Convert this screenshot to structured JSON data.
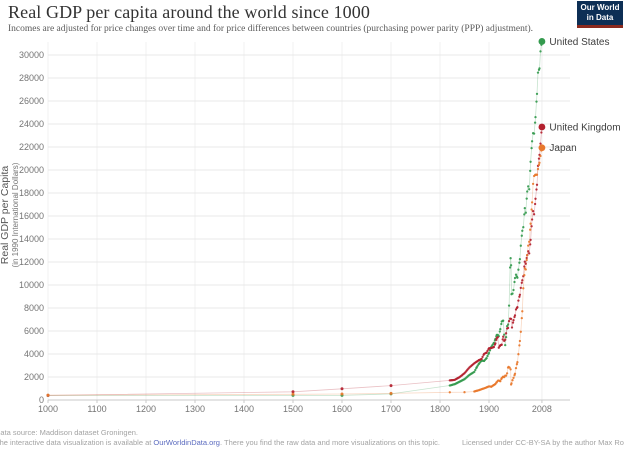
{
  "header": {
    "title": "Real GDP per capita around the world since 1000",
    "subtitle": "Incomes are adjusted for price changes over time and for price differences between countries (purchasing power parity (PPP) adjustment).",
    "logo": {
      "line1": "Our World",
      "line2": "in Data",
      "bg_color": "#0d2f55",
      "accent_color": "#8b2a1e"
    }
  },
  "chart_data": {
    "type": "scatter",
    "title": "Real GDP per capita around the world since 1000",
    "xlabel": "",
    "ylabel": "Real GDP per Capita",
    "ylabel2": "(in 1990 International Dollars)",
    "xlim": [
      1000,
      2008
    ],
    "ylim": [
      0,
      31400
    ],
    "grid": true,
    "legend_position": "right-of-last-point",
    "x_ticks": [
      1000,
      1100,
      1200,
      1300,
      1400,
      1500,
      1600,
      1700,
      1800,
      1900,
      2008
    ],
    "y_ticks": [
      0,
      2000,
      4000,
      6000,
      8000,
      10000,
      12000,
      14000,
      16000,
      18000,
      20000,
      22000,
      24000,
      26000,
      28000,
      30000
    ],
    "series": [
      {
        "name": "United States",
        "color": "#349a4e",
        "points": [
          [
            1000,
            400
          ],
          [
            1500,
            400
          ],
          [
            1600,
            400
          ],
          [
            1700,
            527
          ],
          [
            1820,
            1257
          ],
          [
            1830,
            1376
          ],
          [
            1840,
            1588
          ],
          [
            1850,
            1806
          ],
          [
            1860,
            2178
          ],
          [
            1870,
            2445
          ],
          [
            1875,
            2860
          ],
          [
            1880,
            3184
          ],
          [
            1885,
            3430
          ],
          [
            1890,
            3392
          ],
          [
            1895,
            3644
          ],
          [
            1900,
            4091
          ],
          [
            1905,
            4642
          ],
          [
            1910,
            4964
          ],
          [
            1913,
            5301
          ],
          [
            1916,
            5659
          ],
          [
            1918,
            5659
          ],
          [
            1920,
            5552
          ],
          [
            1923,
            6164
          ],
          [
            1926,
            6826
          ],
          [
            1929,
            6899
          ],
          [
            1931,
            5691
          ],
          [
            1933,
            4777
          ],
          [
            1935,
            5467
          ],
          [
            1937,
            6430
          ],
          [
            1939,
            6561
          ],
          [
            1941,
            8206
          ],
          [
            1943,
            11518
          ],
          [
            1944,
            12333
          ],
          [
            1945,
            11709
          ],
          [
            1946,
            9197
          ],
          [
            1948,
            9255
          ],
          [
            1950,
            9561
          ],
          [
            1953,
            10613
          ],
          [
            1955,
            10897
          ],
          [
            1958,
            10631
          ],
          [
            1960,
            11328
          ],
          [
            1963,
            12242
          ],
          [
            1965,
            13419
          ],
          [
            1968,
            14715
          ],
          [
            1970,
            15030
          ],
          [
            1973,
            16689
          ],
          [
            1975,
            16284
          ],
          [
            1978,
            18134
          ],
          [
            1980,
            18577
          ],
          [
            1982,
            18325
          ],
          [
            1985,
            20717
          ],
          [
            1988,
            22499
          ],
          [
            1990,
            23201
          ],
          [
            1992,
            23169
          ],
          [
            1995,
            24603
          ],
          [
            1998,
            26619
          ],
          [
            2000,
            28467
          ],
          [
            2003,
            28836
          ],
          [
            2005,
            30309
          ],
          [
            2008,
            31178
          ]
        ]
      },
      {
        "name": "United Kingdom",
        "color": "#b3202e",
        "points": [
          [
            1000,
            400
          ],
          [
            1500,
            714
          ],
          [
            1600,
            974
          ],
          [
            1700,
            1250
          ],
          [
            1820,
            1706
          ],
          [
            1830,
            1749
          ],
          [
            1840,
            1990
          ],
          [
            1850,
            2330
          ],
          [
            1860,
            2830
          ],
          [
            1870,
            3190
          ],
          [
            1875,
            3341
          ],
          [
            1880,
            3477
          ],
          [
            1885,
            3574
          ],
          [
            1890,
            4009
          ],
          [
            1895,
            4118
          ],
          [
            1900,
            4492
          ],
          [
            1905,
            4520
          ],
          [
            1910,
            4611
          ],
          [
            1913,
            4921
          ],
          [
            1916,
            5381
          ],
          [
            1918,
            5459
          ],
          [
            1920,
            4548
          ],
          [
            1923,
            4760
          ],
          [
            1926,
            4813
          ],
          [
            1929,
            5503
          ],
          [
            1931,
            5138
          ],
          [
            1933,
            5245
          ],
          [
            1935,
            5799
          ],
          [
            1937,
            6218
          ],
          [
            1939,
            6262
          ],
          [
            1941,
            6861
          ],
          [
            1943,
            7069
          ],
          [
            1945,
            7056
          ],
          [
            1947,
            6308
          ],
          [
            1950,
            6939
          ],
          [
            1953,
            7358
          ],
          [
            1955,
            7868
          ],
          [
            1958,
            8066
          ],
          [
            1960,
            8645
          ],
          [
            1963,
            9149
          ],
          [
            1965,
            9752
          ],
          [
            1968,
            10410
          ],
          [
            1970,
            10767
          ],
          [
            1973,
            12025
          ],
          [
            1975,
            11847
          ],
          [
            1978,
            12600
          ],
          [
            1980,
            12931
          ],
          [
            1982,
            12747
          ],
          [
            1985,
            13926
          ],
          [
            1988,
            15700
          ],
          [
            1990,
            16430
          ],
          [
            1992,
            16152
          ],
          [
            1995,
            17495
          ],
          [
            1998,
            18714
          ],
          [
            2000,
            20353
          ],
          [
            2003,
            21310
          ],
          [
            2005,
            22296
          ],
          [
            2008,
            23742
          ]
        ]
      },
      {
        "name": "Japan",
        "color": "#e8782d",
        "points": [
          [
            1000,
            425
          ],
          [
            1500,
            500
          ],
          [
            1600,
            520
          ],
          [
            1700,
            570
          ],
          [
            1820,
            669
          ],
          [
            1850,
            679
          ],
          [
            1870,
            737
          ],
          [
            1880,
            863
          ],
          [
            1890,
            1012
          ],
          [
            1900,
            1180
          ],
          [
            1905,
            1157
          ],
          [
            1910,
            1304
          ],
          [
            1913,
            1387
          ],
          [
            1916,
            1558
          ],
          [
            1918,
            1668
          ],
          [
            1920,
            1696
          ],
          [
            1923,
            1632
          ],
          [
            1926,
            1908
          ],
          [
            1929,
            2026
          ],
          [
            1931,
            1987
          ],
          [
            1933,
            2122
          ],
          [
            1935,
            2120
          ],
          [
            1937,
            2315
          ],
          [
            1939,
            2816
          ],
          [
            1940,
            2874
          ],
          [
            1942,
            2818
          ],
          [
            1944,
            2659
          ],
          [
            1945,
            1346
          ],
          [
            1946,
            1444
          ],
          [
            1948,
            1725
          ],
          [
            1950,
            1921
          ],
          [
            1953,
            2277
          ],
          [
            1955,
            2771
          ],
          [
            1958,
            3290
          ],
          [
            1960,
            3986
          ],
          [
            1963,
            5129
          ],
          [
            1965,
            5934
          ],
          [
            1968,
            7711
          ],
          [
            1970,
            9714
          ],
          [
            1973,
            11434
          ],
          [
            1975,
            11344
          ],
          [
            1978,
            12585
          ],
          [
            1980,
            13428
          ],
          [
            1982,
            13754
          ],
          [
            1985,
            15331
          ],
          [
            1988,
            17185
          ],
          [
            1990,
            18789
          ],
          [
            1992,
            19478
          ],
          [
            1995,
            19600
          ],
          [
            1998,
            19582
          ],
          [
            2000,
            20084
          ],
          [
            2003,
            20625
          ],
          [
            2005,
            21219
          ],
          [
            2008,
            21935
          ]
        ]
      }
    ]
  },
  "footer": {
    "source": "Data source: Maddison dataset Groningen.",
    "note_before": "The interactive data visualization is available at ",
    "link": "OurWorldinData.org",
    "note_after": ". There you find the raw data and more visualizations on this topic.",
    "license": "Licensed under CC-BY-SA by the author Max Roser."
  }
}
